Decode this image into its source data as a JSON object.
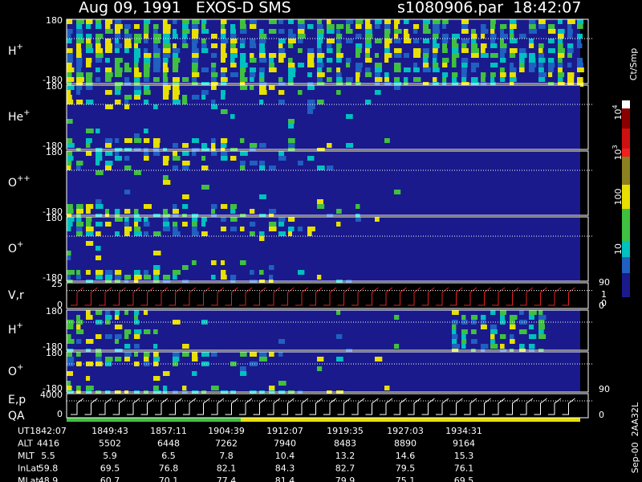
{
  "header": {
    "title": "Aug 09, 1991   EXOS-D SMS",
    "file": "s1080906.par  18:42:07"
  },
  "panels": [
    {
      "name": "H",
      "charge": "+",
      "ticks": [
        "180",
        "-180"
      ],
      "right": []
    },
    {
      "name": "He",
      "charge": "+",
      "ticks": [
        "180",
        "-180"
      ],
      "right": []
    },
    {
      "name": "O",
      "charge": "++",
      "ticks": [
        "180",
        "-180"
      ],
      "right": []
    },
    {
      "name": "O",
      "charge": "+",
      "ticks": [
        "180",
        "-180"
      ],
      "right": []
    },
    {
      "name": "V,r",
      "charge": "",
      "ticks": [
        "25",
        "0"
      ],
      "right": [
        "90",
        "0"
      ]
    },
    {
      "name": "H",
      "charge": "+",
      "ticks": [
        "180",
        "-180"
      ],
      "right": []
    },
    {
      "name": "O",
      "charge": "+",
      "ticks": [
        "180",
        "-180"
      ],
      "right": [
        "90"
      ]
    },
    {
      "name": "E,p",
      "charge": "",
      "ticks": [
        "4000",
        "0"
      ],
      "right": [
        "0"
      ]
    }
  ],
  "qa_label": "QA",
  "colorbar": {
    "unit": "Ct/Smp",
    "ticks": [
      {
        "base": "10",
        "exp": "4"
      },
      {
        "base": "10",
        "exp": "3"
      },
      {
        "base": "100",
        "exp": ""
      },
      {
        "base": "10",
        "exp": ""
      },
      {
        "base": "1",
        "exp": ""
      },
      {
        "base": "0",
        "exp": ""
      }
    ]
  },
  "side_note": "Sep-00  2AA32L",
  "table": {
    "rows": [
      [
        "UT",
        "1842:07",
        "1849:43",
        "1857:11",
        "1904:39",
        "1912:07",
        "1919:35",
        "1927:03",
        "1934:31"
      ],
      [
        "ALT",
        "4416",
        "5502",
        "6448",
        "7262",
        "7940",
        "8483",
        "8890",
        "9164"
      ],
      [
        "MLT",
        "5.5",
        "5.9",
        "6.5",
        "7.8",
        "10.4",
        "13.2",
        "14.6",
        "15.3"
      ],
      [
        "InLat",
        "59.8",
        "69.5",
        "76.8",
        "82.1",
        "84.3",
        "82.7",
        "79.5",
        "76.1"
      ],
      [
        "MLat",
        "48.9",
        "60.7",
        "70.1",
        "77.4",
        "81.4",
        "79.9",
        "75.1",
        "69.5"
      ]
    ]
  }
}
